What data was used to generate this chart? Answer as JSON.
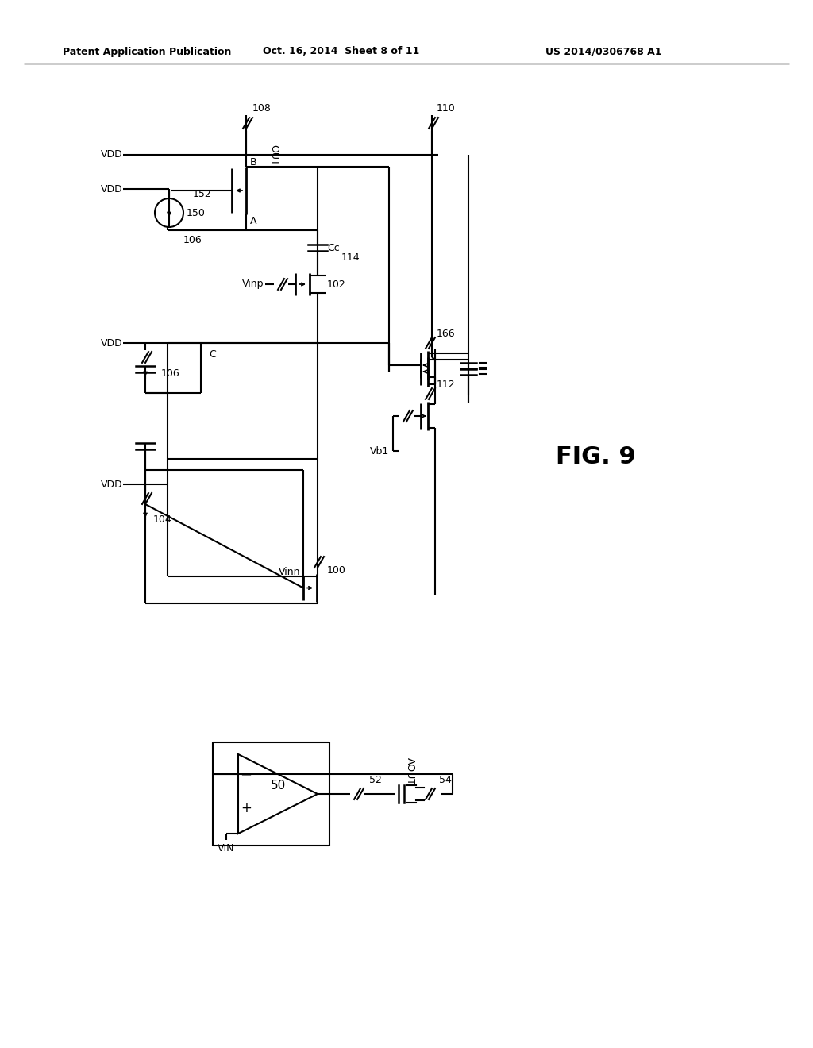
{
  "bg_color": "#ffffff",
  "header_left": "Patent Application Publication",
  "header_center": "Oct. 16, 2014  Sheet 8 of 11",
  "header_right": "US 2014/0306768 A1",
  "fig_label": "FIG. 9"
}
